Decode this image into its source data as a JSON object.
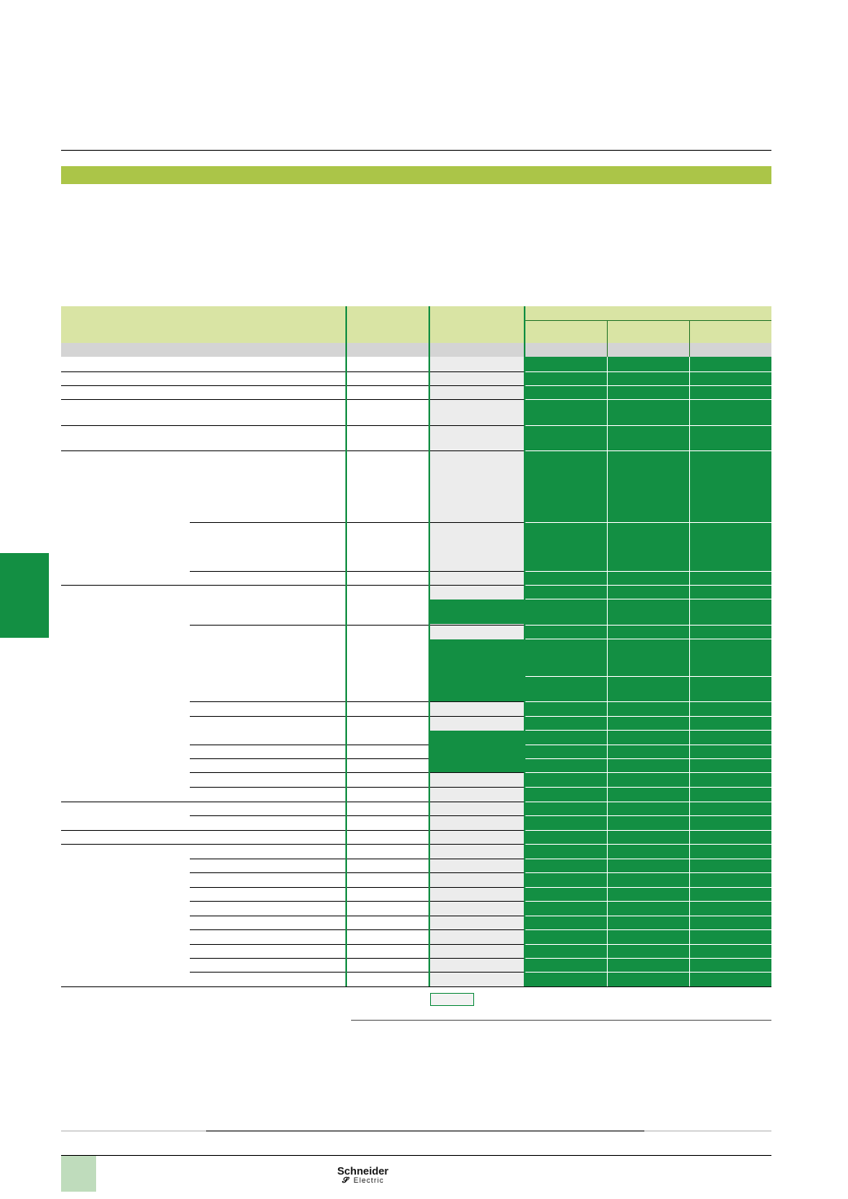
{
  "colors": {
    "accent_band": "#abc548",
    "header_fill": "#d9e4a4",
    "cell_green": "#138f43",
    "cell_grey": "#ececec",
    "side_tab": "#138f43",
    "page_box": "#bfdcbc"
  },
  "footer": {
    "brand_name": "Schneider",
    "brand_sub": "Electric",
    "brand_icon": "schneider-logo-icon"
  }
}
